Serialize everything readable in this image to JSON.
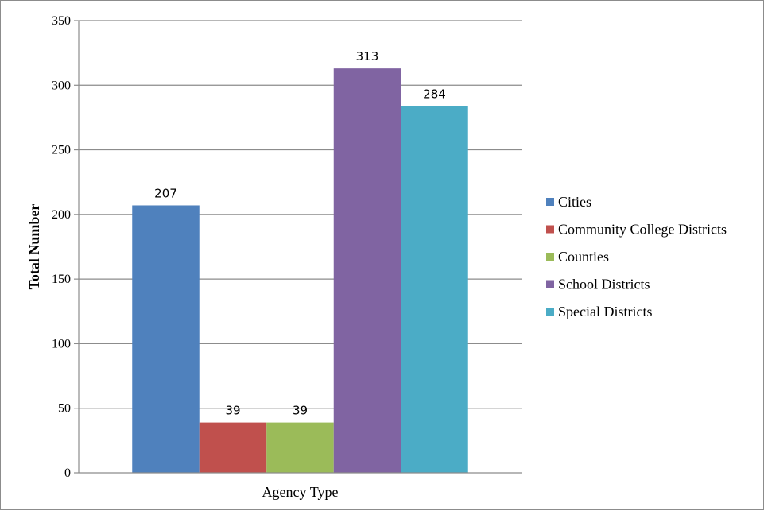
{
  "chart_data": {
    "type": "bar",
    "xlabel": "Agency Type",
    "ylabel": "Total Number",
    "ylim": [
      0,
      350
    ],
    "yticks": [
      0,
      50,
      100,
      150,
      200,
      250,
      300,
      350
    ],
    "grid": true,
    "legend_position": "right",
    "categories": [
      "Agency Type"
    ],
    "series": [
      {
        "name": "Cities",
        "values": [
          207
        ],
        "color": "#4f81bd"
      },
      {
        "name": "Community College Districts",
        "values": [
          39
        ],
        "color": "#c0504d"
      },
      {
        "name": "Counties",
        "values": [
          39
        ],
        "color": "#9bbb59"
      },
      {
        "name": "School Districts",
        "values": [
          313
        ],
        "color": "#8064a2"
      },
      {
        "name": "Special Districts",
        "values": [
          284
        ],
        "color": "#4bacc6"
      }
    ]
  }
}
